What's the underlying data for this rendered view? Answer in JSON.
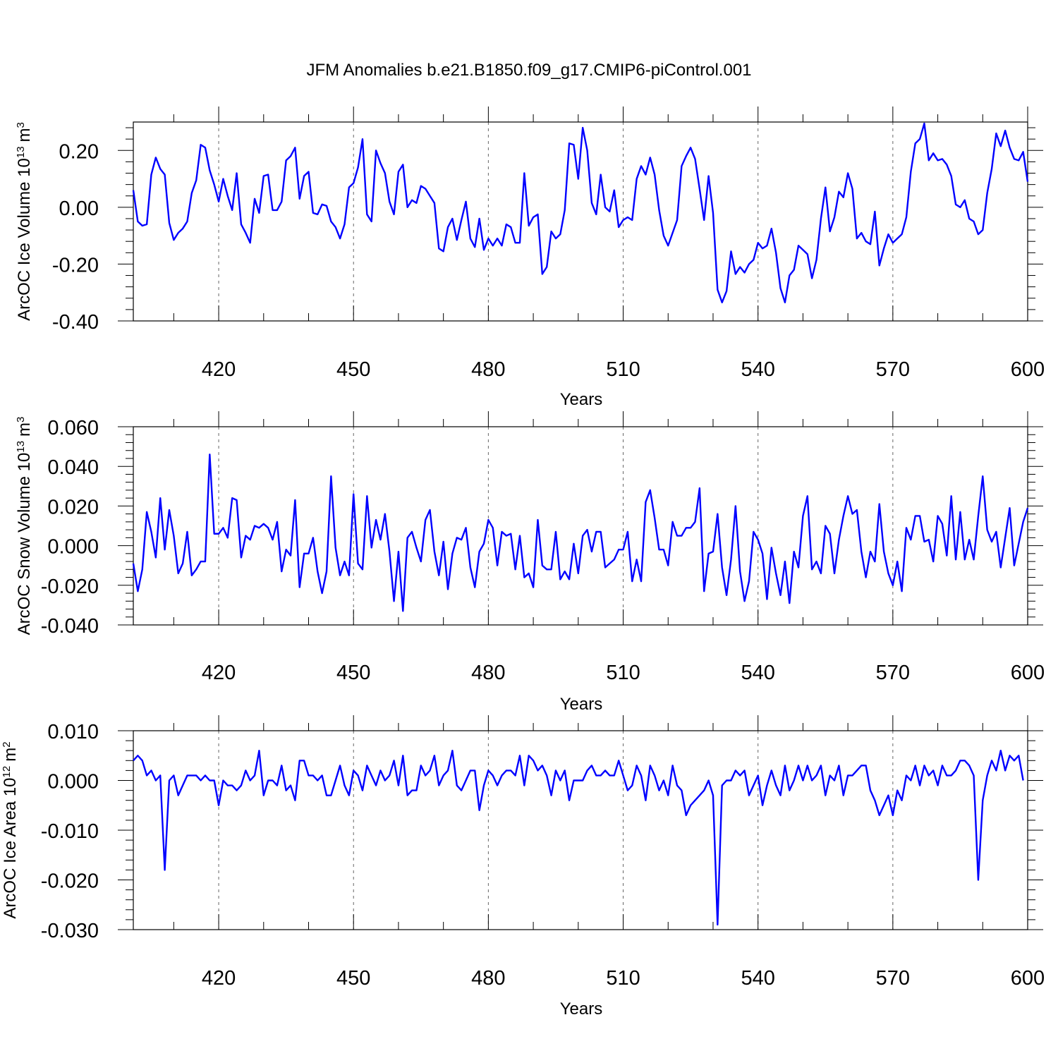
{
  "title": "JFM Anomalies b.e21.B1850.f09_g17.CMIP6-piControl.001",
  "line_color": "#0000ff",
  "chart_data": [
    {
      "type": "line",
      "ylabel_text": "ArcOC Ice Volume 10",
      "ylabel_exp": "13",
      "ylabel_unit": "m",
      "ylabel_unit_exp": "3",
      "xlabel": "Years",
      "xlim": [
        401,
        600
      ],
      "ylim": [
        -0.4,
        0.3
      ],
      "xticks": [
        420,
        450,
        480,
        510,
        540,
        570,
        600
      ],
      "xtick_labels": [
        "420",
        "450",
        "480",
        "510",
        "540",
        "570",
        "600"
      ],
      "yticks": [
        -0.4,
        -0.2,
        0.0,
        0.2
      ],
      "ytick_labels": [
        "-0.40",
        "-0.20",
        "0.00",
        "0.20"
      ],
      "grid": "vertical dashed at x ticks",
      "series": [
        {
          "x_start": 401,
          "values": [
            0.06,
            -0.05,
            -0.065,
            -0.06,
            0.115,
            0.175,
            0.135,
            0.115,
            -0.055,
            -0.115,
            -0.09,
            -0.075,
            -0.05,
            0.05,
            0.095,
            0.22,
            0.21,
            0.13,
            0.08,
            0.02,
            0.1,
            0.04,
            -0.01,
            0.12,
            -0.06,
            -0.09,
            -0.125,
            0.03,
            -0.02,
            0.11,
            0.115,
            -0.01,
            -0.01,
            0.02,
            0.165,
            0.18,
            0.21,
            0.03,
            0.11,
            0.125,
            -0.02,
            -0.025,
            0.01,
            0.005,
            -0.05,
            -0.07,
            -0.11,
            -0.06,
            0.07,
            0.085,
            0.14,
            0.24,
            -0.025,
            -0.05,
            0.2,
            0.155,
            0.12,
            0.02,
            -0.025,
            0.125,
            0.15,
            0.0,
            0.025,
            0.015,
            0.075,
            0.065,
            0.04,
            0.015,
            -0.145,
            -0.155,
            -0.07,
            -0.04,
            -0.115,
            -0.045,
            0.02,
            -0.11,
            -0.14,
            -0.04,
            -0.15,
            -0.11,
            -0.135,
            -0.11,
            -0.135,
            -0.06,
            -0.07,
            -0.125,
            -0.125,
            0.12,
            -0.065,
            -0.035,
            -0.025,
            -0.235,
            -0.21,
            -0.085,
            -0.11,
            -0.095,
            -0.01,
            0.225,
            0.22,
            0.1,
            0.28,
            0.2,
            0.015,
            -0.025,
            0.115,
            0.0,
            -0.015,
            0.06,
            -0.07,
            -0.045,
            -0.035,
            -0.045,
            0.1,
            0.145,
            0.115,
            0.175,
            0.115,
            -0.01,
            -0.1,
            -0.135,
            -0.09,
            -0.045,
            0.145,
            0.18,
            0.21,
            0.17,
            0.065,
            -0.045,
            0.11,
            -0.02,
            -0.29,
            -0.335,
            -0.295,
            -0.155,
            -0.235,
            -0.21,
            -0.23,
            -0.2,
            -0.185,
            -0.125,
            -0.145,
            -0.135,
            -0.075,
            -0.16,
            -0.285,
            -0.335,
            -0.24,
            -0.22,
            -0.135,
            -0.15,
            -0.165,
            -0.25,
            -0.185,
            -0.04,
            0.07,
            -0.085,
            -0.035,
            0.055,
            0.035,
            0.12,
            0.065,
            -0.11,
            -0.09,
            -0.12,
            -0.13,
            -0.015,
            -0.205,
            -0.145,
            -0.095,
            -0.125,
            -0.11,
            -0.095,
            -0.035,
            0.125,
            0.225,
            0.24,
            0.295,
            0.165,
            0.19,
            0.165,
            0.17,
            0.15,
            0.11,
            0.01,
            0.0,
            0.025,
            -0.04,
            -0.05,
            -0.095,
            -0.08,
            0.05,
            0.135,
            0.26,
            0.215,
            0.27,
            0.21,
            0.17,
            0.165,
            0.195,
            0.09
          ]
        }
      ]
    },
    {
      "type": "line",
      "ylabel_text": "ArcOC Snow Volume 10",
      "ylabel_exp": "13",
      "ylabel_unit": "m",
      "ylabel_unit_exp": "3",
      "xlabel": "Years",
      "xlim": [
        401,
        600
      ],
      "ylim": [
        -0.04,
        0.06
      ],
      "xticks": [
        420,
        450,
        480,
        510,
        540,
        570,
        600
      ],
      "xtick_labels": [
        "420",
        "450",
        "480",
        "510",
        "540",
        "570",
        "600"
      ],
      "yticks": [
        -0.04,
        -0.02,
        0.0,
        0.02,
        0.04,
        0.06
      ],
      "ytick_labels": [
        "-0.040",
        "-0.020",
        "0.000",
        "0.020",
        "0.040",
        "0.060"
      ],
      "grid": "vertical dashed at x ticks",
      "series": [
        {
          "x_start": 401,
          "values": [
            -0.009,
            -0.023,
            -0.012,
            0.017,
            0.007,
            -0.006,
            0.024,
            -0.002,
            0.018,
            0.005,
            -0.014,
            -0.009,
            0.007,
            -0.015,
            -0.012,
            -0.008,
            -0.008,
            0.046,
            0.006,
            0.006,
            0.009,
            0.004,
            0.024,
            0.023,
            -0.006,
            0.005,
            0.003,
            0.01,
            0.009,
            0.011,
            0.009,
            0.003,
            0.012,
            -0.013,
            -0.002,
            -0.005,
            0.023,
            -0.021,
            -0.004,
            -0.004,
            0.004,
            -0.013,
            -0.024,
            -0.013,
            0.035,
            -0.001,
            -0.015,
            -0.008,
            -0.015,
            0.026,
            -0.009,
            -0.012,
            0.025,
            -0.001,
            0.013,
            0.003,
            0.016,
            -0.003,
            -0.028,
            -0.003,
            -0.033,
            0.004,
            0.007,
            -0.001,
            -0.008,
            0.013,
            0.018,
            -0.003,
            -0.015,
            0.002,
            -0.022,
            -0.004,
            0.004,
            0.003,
            0.009,
            -0.011,
            -0.021,
            -0.003,
            0.001,
            0.013,
            0.009,
            -0.01,
            0.007,
            0.005,
            0.006,
            -0.012,
            0.005,
            -0.016,
            -0.014,
            -0.021,
            0.013,
            -0.01,
            -0.012,
            -0.012,
            0.007,
            -0.017,
            -0.013,
            -0.017,
            0.001,
            -0.014,
            0.005,
            0.008,
            -0.003,
            0.007,
            0.007,
            -0.011,
            -0.009,
            -0.007,
            -0.002,
            -0.002,
            0.007,
            -0.018,
            -0.007,
            -0.018,
            0.022,
            0.028,
            0.014,
            -0.002,
            -0.002,
            -0.01,
            0.012,
            0.005,
            0.005,
            0.009,
            0.009,
            0.012,
            0.029,
            -0.023,
            -0.004,
            -0.003,
            0.016,
            -0.011,
            -0.025,
            -0.007,
            0.02,
            -0.013,
            -0.028,
            -0.018,
            0.007,
            0.003,
            -0.004,
            -0.027,
            -0.001,
            -0.014,
            -0.025,
            -0.008,
            -0.029,
            -0.003,
            -0.011,
            0.015,
            0.025,
            -0.012,
            -0.008,
            -0.014,
            0.01,
            0.006,
            -0.014,
            0.003,
            0.015,
            0.025,
            0.016,
            0.018,
            -0.003,
            -0.016,
            -0.003,
            -0.008,
            0.021,
            -0.003,
            -0.014,
            -0.02,
            -0.008,
            -0.023,
            0.009,
            0.003,
            0.015,
            0.015,
            0.002,
            0.003,
            -0.008,
            0.015,
            0.011,
            -0.005,
            0.025,
            -0.007,
            0.017,
            -0.007,
            0.003,
            -0.007,
            0.015,
            0.035,
            0.008,
            0.002,
            0.007,
            -0.011,
            0.004,
            0.019,
            -0.01,
            0.001,
            0.012,
            0.019
          ]
        }
      ]
    },
    {
      "type": "line",
      "ylabel_text": "ArcOC Ice Area 10",
      "ylabel_exp": "12",
      "ylabel_unit": "m",
      "ylabel_unit_exp": "2",
      "xlabel": "Years",
      "xlim": [
        401,
        600
      ],
      "ylim": [
        -0.03,
        0.01
      ],
      "xticks": [
        420,
        450,
        480,
        510,
        540,
        570,
        600
      ],
      "xtick_labels": [
        "420",
        "450",
        "480",
        "510",
        "540",
        "570",
        "600"
      ],
      "yticks": [
        -0.03,
        -0.02,
        -0.01,
        0.0,
        0.01
      ],
      "ytick_labels": [
        "-0.030",
        "-0.020",
        "-0.010",
        "0.000",
        "0.010"
      ],
      "grid": "vertical dashed at x ticks",
      "series": [
        {
          "x_start": 401,
          "values": [
            0.004,
            0.005,
            0.004,
            0.001,
            0.002,
            0.0,
            0.001,
            -0.018,
            0.0,
            0.001,
            -0.003,
            -0.001,
            0.001,
            0.001,
            0.001,
            0.0,
            0.001,
            0.0,
            0.0,
            -0.005,
            0.0,
            -0.001,
            -0.001,
            -0.002,
            -0.001,
            0.002,
            0.0,
            0.001,
            0.006,
            -0.003,
            0.0,
            0.0,
            -0.001,
            0.003,
            -0.002,
            -0.001,
            -0.004,
            0.004,
            0.004,
            0.001,
            0.001,
            0.0,
            0.001,
            -0.003,
            -0.003,
            0.0,
            0.003,
            -0.001,
            -0.003,
            0.002,
            0.001,
            -0.002,
            0.003,
            0.001,
            -0.001,
            0.002,
            0.0,
            0.001,
            0.004,
            -0.001,
            0.005,
            -0.003,
            -0.002,
            -0.002,
            0.003,
            0.001,
            0.002,
            0.005,
            -0.001,
            0.001,
            0.002,
            0.006,
            -0.001,
            -0.002,
            0.0,
            0.002,
            0.002,
            -0.006,
            -0.001,
            0.002,
            0.001,
            -0.001,
            0.001,
            0.002,
            0.002,
            0.001,
            0.005,
            -0.001,
            0.005,
            0.004,
            0.002,
            0.003,
            0.001,
            -0.003,
            0.002,
            0.0,
            0.002,
            -0.004,
            0.0,
            0.0,
            0.0,
            0.002,
            0.003,
            0.001,
            0.001,
            0.002,
            0.001,
            0.001,
            0.004,
            0.001,
            -0.002,
            -0.001,
            0.003,
            0.001,
            -0.004,
            0.003,
            0.001,
            -0.002,
            0.0,
            -0.003,
            0.003,
            -0.001,
            -0.002,
            -0.007,
            -0.005,
            -0.004,
            -0.003,
            -0.002,
            0.0,
            -0.003,
            -0.029,
            -0.001,
            0.0,
            0.0,
            0.002,
            0.001,
            0.002,
            -0.003,
            -0.001,
            0.001,
            -0.005,
            -0.001,
            0.002,
            -0.001,
            -0.003,
            0.003,
            -0.002,
            0.0,
            0.003,
            0.0,
            0.003,
            0.0,
            0.001,
            0.003,
            -0.003,
            0.001,
            0.0,
            0.003,
            -0.003,
            0.001,
            0.001,
            0.002,
            0.003,
            0.003,
            -0.002,
            -0.004,
            -0.007,
            -0.005,
            -0.003,
            -0.007,
            -0.002,
            -0.004,
            0.001,
            0.0,
            0.003,
            -0.001,
            0.003,
            0.001,
            0.002,
            -0.001,
            0.003,
            0.001,
            0.001,
            0.002,
            0.004,
            0.004,
            0.003,
            0.001,
            -0.02,
            -0.004,
            0.001,
            0.004,
            0.002,
            0.006,
            0.002,
            0.005,
            0.004,
            0.005,
            0.0
          ]
        }
      ]
    }
  ]
}
